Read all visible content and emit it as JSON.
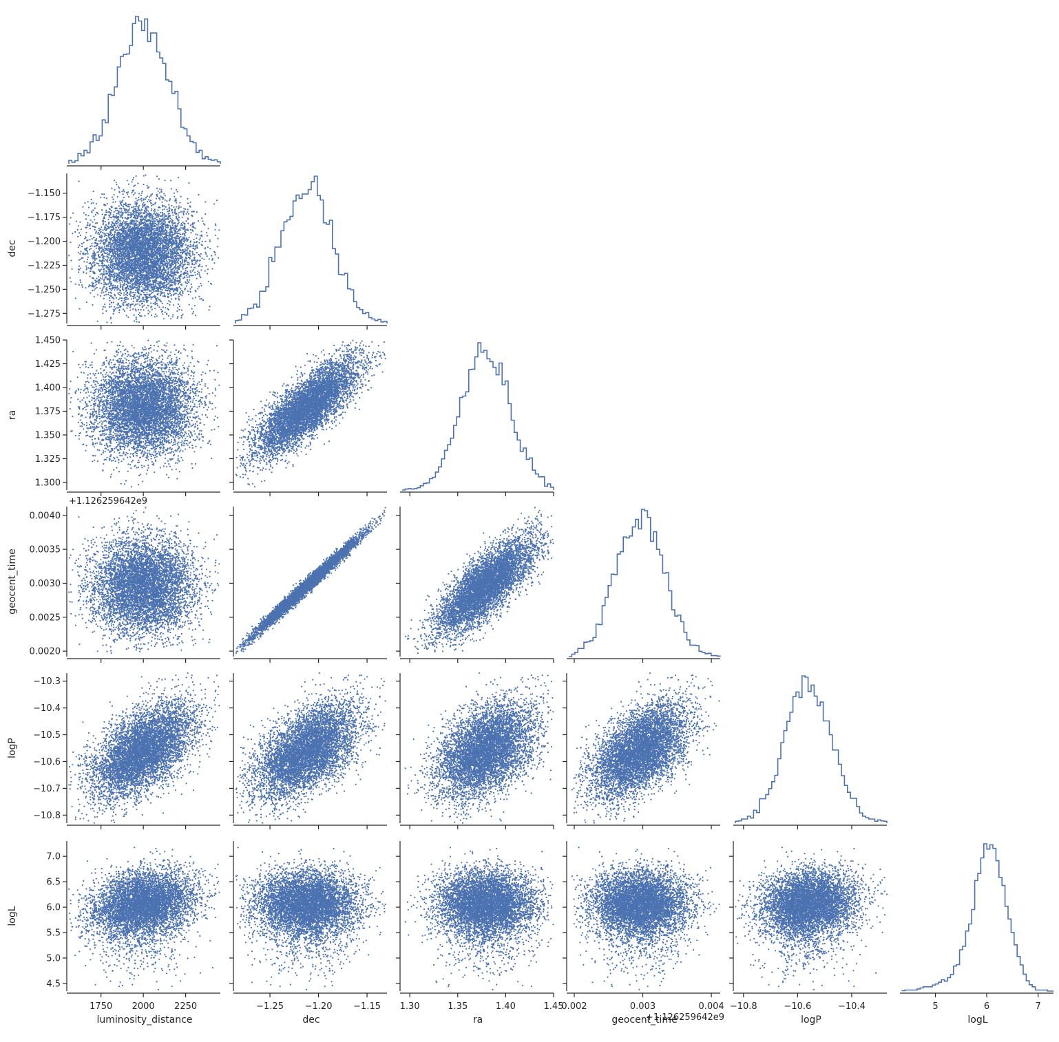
{
  "chart_data": {
    "type": "scatter",
    "layout": "corner-plot",
    "title": "",
    "color": "#4c72b0",
    "axis_color": "#262626",
    "grid": false,
    "variables": [
      {
        "name": "luminosity_distance",
        "label": "luminosity_distance",
        "range": [
          1560,
          2455
        ],
        "ticks": [
          1750,
          2000,
          2250
        ],
        "tick_labels": [
          "1750",
          "2000",
          "2250"
        ],
        "mean": 2000,
        "sd": 150
      },
      {
        "name": "dec",
        "label": "dec",
        "range": [
          -1.2855,
          -1.1295
        ],
        "ticks": [
          -1.275,
          -1.25,
          -1.225,
          -1.2,
          -1.175,
          -1.15
        ],
        "tick_labels": [
          "−1.275",
          "−1.250",
          "−1.225",
          "−1.200",
          "−1.175",
          "−1.150"
        ],
        "x_ticks": [
          -1.25,
          -1.2,
          -1.15
        ],
        "x_tick_labels": [
          "−1.25",
          "−1.20",
          "−1.15"
        ],
        "mean": -1.212,
        "sd": 0.027
      },
      {
        "name": "ra",
        "label": "ra",
        "range": [
          1.292,
          1.45
        ],
        "ticks": [
          1.3,
          1.325,
          1.35,
          1.375,
          1.4,
          1.425,
          1.45
        ],
        "tick_labels": [
          "1.300",
          "1.325",
          "1.350",
          "1.375",
          "1.400",
          "1.425",
          "1.450"
        ],
        "x_ticks": [
          1.3,
          1.35,
          1.4,
          1.45
        ],
        "x_tick_labels": [
          "1.30",
          "1.35",
          "1.40",
          "1.45"
        ],
        "mean": 1.379,
        "sd": 0.026
      },
      {
        "name": "geocent_time",
        "label": "geocent_time",
        "offset_label": "+1.126259642e9",
        "range": [
          0.00192,
          0.00413
        ],
        "ticks": [
          0.002,
          0.0025,
          0.003,
          0.0035,
          0.004
        ],
        "tick_labels": [
          "0.0020",
          "0.0025",
          "0.0030",
          "0.0035",
          "0.0040"
        ],
        "x_ticks": [
          0.002,
          0.003,
          0.004
        ],
        "x_tick_labels": [
          "0.002",
          "0.003",
          "0.004"
        ],
        "mean": 0.00296,
        "sd": 0.00036
      },
      {
        "name": "logP",
        "label": "logP",
        "range": [
          -10.83,
          -10.27
        ],
        "ticks": [
          -10.8,
          -10.7,
          -10.6,
          -10.5,
          -10.4,
          -10.3
        ],
        "tick_labels": [
          "−10.8",
          "−10.7",
          "−10.6",
          "−10.5",
          "−10.4",
          "−10.3"
        ],
        "x_ticks": [
          -10.8,
          -10.6,
          -10.4
        ],
        "x_tick_labels": [
          "−10.8",
          "−10.6",
          "−10.4"
        ],
        "mean": -10.56,
        "sd": 0.09
      },
      {
        "name": "logL",
        "label": "logL",
        "range": [
          4.35,
          7.3
        ],
        "ticks": [
          4.5,
          5.0,
          5.5,
          6.0,
          6.5,
          7.0
        ],
        "tick_labels": [
          "4.5",
          "5.0",
          "5.5",
          "6.0",
          "6.5",
          "7.0"
        ],
        "x_ticks": [
          5,
          6,
          7
        ],
        "x_tick_labels": [
          "5",
          "6",
          "7"
        ],
        "mean": 6.12,
        "sd": 0.3
      }
    ],
    "correlations": {
      "dec|ra": 0.8,
      "dec|geocent_time": 0.99,
      "ra|geocent_time": 0.78,
      "luminosity_distance|logP": 0.72,
      "dec|logP": 0.8,
      "ra|logP": 0.6,
      "geocent_time|logP": 0.78,
      "luminosity_distance|logL": 0.35,
      "logP|logL": 0.28
    },
    "diagonal": "step-histogram",
    "offdiagonal": "scatter"
  }
}
